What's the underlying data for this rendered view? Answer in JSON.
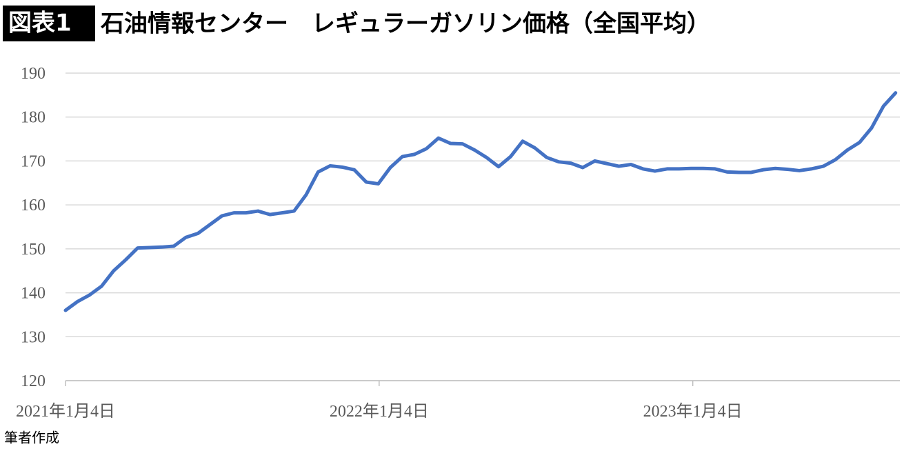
{
  "chart_data": {
    "type": "line",
    "badge": "図表1",
    "title": "石油情報センター　レギュラーガソリン価格（全国平均）",
    "source": "筆者作成",
    "x": [
      "2021-01-04",
      "2021-01-18",
      "2021-02-01",
      "2021-02-15",
      "2021-03-01",
      "2021-03-15",
      "2021-03-29",
      "2021-04-12",
      "2021-04-26",
      "2021-05-10",
      "2021-05-24",
      "2021-06-07",
      "2021-06-21",
      "2021-07-05",
      "2021-07-19",
      "2021-08-02",
      "2021-08-16",
      "2021-08-30",
      "2021-09-13",
      "2021-09-27",
      "2021-10-11",
      "2021-10-25",
      "2021-11-08",
      "2021-11-22",
      "2021-12-06",
      "2021-12-20",
      "2022-01-03",
      "2022-01-17",
      "2022-01-31",
      "2022-02-14",
      "2022-02-28",
      "2022-03-14",
      "2022-03-28",
      "2022-04-11",
      "2022-04-25",
      "2022-05-09",
      "2022-05-23",
      "2022-06-06",
      "2022-06-20",
      "2022-07-04",
      "2022-07-18",
      "2022-08-01",
      "2022-08-15",
      "2022-08-29",
      "2022-09-12",
      "2022-09-26",
      "2022-10-10",
      "2022-10-24",
      "2022-11-07",
      "2022-11-21",
      "2022-12-05",
      "2022-12-19",
      "2023-01-02",
      "2023-01-16",
      "2023-01-30",
      "2023-02-13",
      "2023-02-27",
      "2023-03-13",
      "2023-03-27",
      "2023-04-10",
      "2023-04-24",
      "2023-05-08",
      "2023-05-22",
      "2023-06-05",
      "2023-06-19",
      "2023-07-03",
      "2023-07-17",
      "2023-07-31",
      "2023-08-14",
      "2023-08-28"
    ],
    "series": [
      {
        "name": "レギュラーガソリン価格",
        "color": "#4472c4",
        "values": [
          136,
          138,
          139.5,
          141.5,
          145,
          147.5,
          150.2,
          150.3,
          150.4,
          150.6,
          152.6,
          153.5,
          155.5,
          157.5,
          158.2,
          158.2,
          158.6,
          157.8,
          158.2,
          158.6,
          162.3,
          167.5,
          168.9,
          168.6,
          168,
          165.2,
          164.8,
          168.5,
          171,
          171.5,
          172.8,
          175.2,
          174,
          173.9,
          172.5,
          170.8,
          168.7,
          171,
          174.5,
          173,
          170.8,
          169.8,
          169.5,
          168.5,
          170,
          169.4,
          168.8,
          169.2,
          168.2,
          167.7,
          168.2,
          168.2,
          168.3,
          168.3,
          168.2,
          167.5,
          167.4,
          167.4,
          168,
          168.3,
          168.1,
          167.8,
          168.2,
          168.8,
          170.3,
          172.5,
          174.2,
          177.5,
          182.5,
          185.5
        ]
      }
    ],
    "xlim": [
      "2021-01-04",
      "2023-09-02"
    ],
    "xticks": [
      {
        "value": "2021-01-04",
        "label": "2021年1月4日"
      },
      {
        "value": "2022-01-04",
        "label": "2022年1月4日"
      },
      {
        "value": "2023-01-04",
        "label": "2023年1月4日"
      }
    ],
    "ylim": [
      120,
      190
    ],
    "yticks": [
      120,
      130,
      140,
      150,
      160,
      170,
      180,
      190
    ],
    "grid": true
  }
}
